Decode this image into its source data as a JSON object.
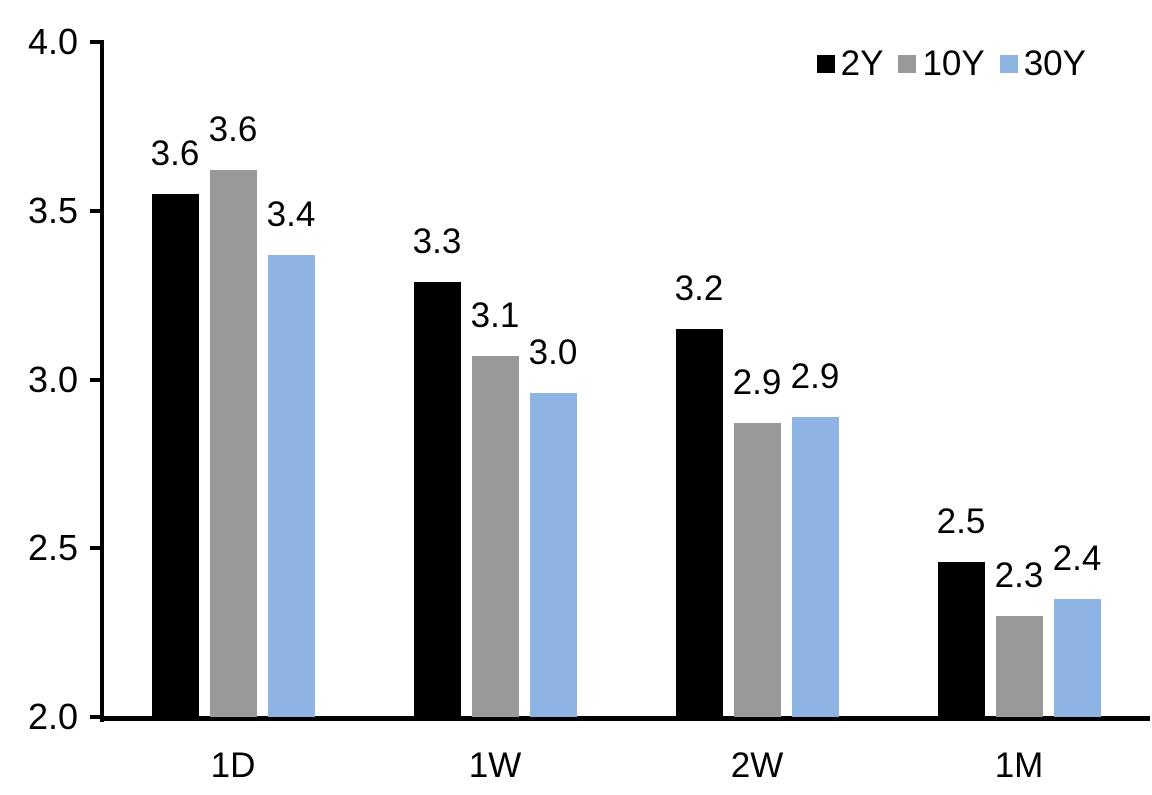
{
  "chart_data": {
    "type": "bar",
    "title": "",
    "categories": [
      "1D",
      "1W",
      "2W",
      "1M"
    ],
    "series": [
      {
        "name": "2Y",
        "color": "#000000",
        "values": [
          3.55,
          3.29,
          3.15,
          2.46
        ],
        "labels": [
          "3.6",
          "3.3",
          "3.2",
          "2.5"
        ]
      },
      {
        "name": "10Y",
        "color": "#999999",
        "values": [
          3.62,
          3.07,
          2.87,
          2.3
        ],
        "labels": [
          "3.6",
          "3.1",
          "2.9",
          "2.3"
        ]
      },
      {
        "name": "30Y",
        "color": "#8EB4E3",
        "values": [
          3.37,
          2.96,
          2.89,
          2.35
        ],
        "labels": [
          "3.4",
          "3.0",
          "2.9",
          "2.4"
        ]
      }
    ],
    "ylim": [
      2.0,
      4.0
    ],
    "yticks": [
      2.0,
      2.5,
      3.0,
      3.5,
      4.0
    ],
    "ytick_labels": [
      "2.0",
      "2.5",
      "3.0",
      "3.5",
      "4.0"
    ],
    "xlabel": "",
    "ylabel": "",
    "grid": false,
    "legend_position": "top-right",
    "axis_color": "#000000",
    "text_color": "#000000",
    "background": "#FFFFFF"
  }
}
